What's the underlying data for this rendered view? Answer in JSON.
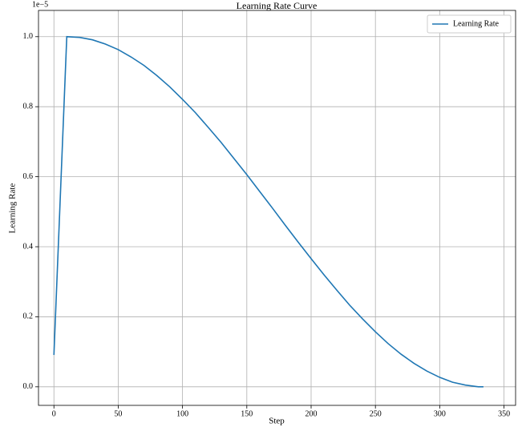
{
  "chart_data": {
    "type": "line",
    "title": "Learning Rate Curve",
    "x_label": "Step",
    "y_label": "Learning Rate",
    "y_offset_label": "1e−5",
    "x": [
      0,
      10,
      20,
      30,
      40,
      50,
      60,
      70,
      80,
      90,
      100,
      110,
      120,
      130,
      140,
      150,
      160,
      170,
      180,
      190,
      200,
      210,
      220,
      230,
      240,
      250,
      260,
      270,
      280,
      290,
      300,
      310,
      320,
      330,
      334
    ],
    "series": [
      {
        "name": "Learning Rate",
        "color": "#1f77b4",
        "values": [
          0.091,
          1.0,
          0.998,
          0.991,
          0.979,
          0.963,
          0.942,
          0.918,
          0.889,
          0.857,
          0.821,
          0.783,
          0.741,
          0.698,
          0.652,
          0.606,
          0.558,
          0.51,
          0.461,
          0.413,
          0.366,
          0.32,
          0.276,
          0.233,
          0.194,
          0.157,
          0.123,
          0.093,
          0.067,
          0.045,
          0.027,
          0.013,
          0.005,
          0.0,
          0.0
        ]
      }
    ],
    "xlim": [
      -12,
      359
    ],
    "ylim": [
      -0.053,
      1.075
    ],
    "xticks": [
      0,
      50,
      100,
      150,
      200,
      250,
      300,
      350
    ],
    "yticks": [
      {
        "value": 0,
        "label": "0.0"
      },
      {
        "value": 0.2,
        "label": "0.2"
      },
      {
        "value": 0.4,
        "label": "0.4"
      },
      {
        "value": 0.6,
        "label": "0.6"
      },
      {
        "value": 0.8,
        "label": "0.8"
      },
      {
        "value": 1,
        "label": "1.0"
      }
    ],
    "grid": true,
    "legend": "upper right"
  }
}
